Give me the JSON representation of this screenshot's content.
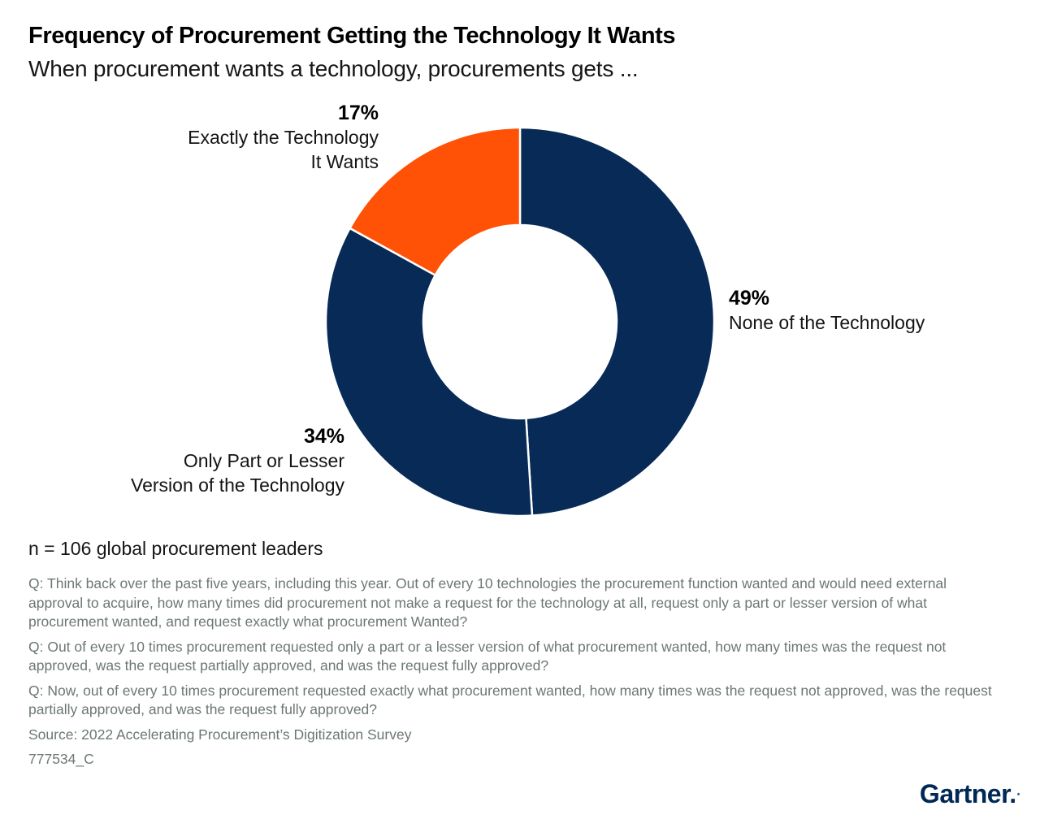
{
  "header": {
    "title": "Frequency of Procurement Getting the Technology It Wants",
    "subtitle": "When procurement wants a technology, procurements gets ..."
  },
  "chart_data": {
    "type": "pie",
    "donut": true,
    "center_hole_ratio": 0.5,
    "start_angle_deg": -90,
    "direction": "clockwise",
    "title": "Frequency of Procurement Getting the Technology It Wants",
    "subtitle": "When procurement wants a technology, procurements gets ...",
    "slices": [
      {
        "label": "None of the Technology",
        "value": 49,
        "color": "#072A56"
      },
      {
        "label": "Only Part or Lesser Version of the Technology",
        "value": 34,
        "color": "#072A56"
      },
      {
        "label": "Exactly the Technology It Wants",
        "value": 17,
        "color": "#FF5206"
      }
    ],
    "separator_color": "#ffffff",
    "n_note": "n = 106 global procurement leaders",
    "legend_position": "callouts"
  },
  "callouts": [
    {
      "pct": "49%",
      "lines": [
        "None of the Technology"
      ]
    },
    {
      "pct": "34%",
      "lines": [
        "Only Part or Lesser",
        "Version of the Technology"
      ]
    },
    {
      "pct": "17%",
      "lines": [
        "Exactly the Technology",
        "It Wants"
      ]
    }
  ],
  "footnotes": {
    "sample": "n = 106 global procurement leaders",
    "q1": "Q: Think back over the past five years, including this year. Out of every 10 technologies the procurement function wanted and would need external approval to acquire, how many times did procurement not make a request for the technology at all, request only a part or lesser version of what procurement wanted, and request exactly what procurement Wanted?",
    "q2": "Q: Out of every 10 times procurement requested only a part or a lesser version of what procurement wanted, how many times was the request not approved, was the request partially approved, and was the request fully approved?",
    "q3": "Q: Now, out of every 10 times procurement requested exactly what procurement wanted, how many times was the request not approved, was the request partially approved, and was the request fully approved?",
    "source": "Source: 2022 Accelerating Procurement’s Digitization Survey",
    "doc_id": "777534_C"
  },
  "branding": {
    "logo_text": "Gartner.",
    "logo_tm": "•",
    "logo_color": "#002856"
  }
}
